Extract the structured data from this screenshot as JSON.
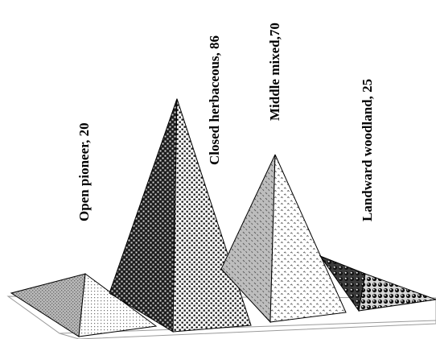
{
  "chart_data": {
    "type": "bar",
    "style": "3d-pyramid",
    "title": "",
    "xlabel": "",
    "ylabel": "",
    "categories": [
      "Open pioneer",
      "Closed herbaceous",
      "Middle mixed",
      "Landward woodland"
    ],
    "values": [
      20,
      86,
      70,
      25
    ],
    "data_labels": [
      "Open pioneer, 20",
      "Closed herbaceous, 86",
      "Middle mixed,70",
      "Landward woodland, 25"
    ],
    "ylim": [
      0,
      100
    ],
    "grid": false,
    "legend": "none",
    "label_orientation": "vertical",
    "fill_patterns": [
      "gray-stipple",
      "dark-dotted-checker",
      "light-gray-scattered-marks",
      "dark-spheres"
    ]
  }
}
